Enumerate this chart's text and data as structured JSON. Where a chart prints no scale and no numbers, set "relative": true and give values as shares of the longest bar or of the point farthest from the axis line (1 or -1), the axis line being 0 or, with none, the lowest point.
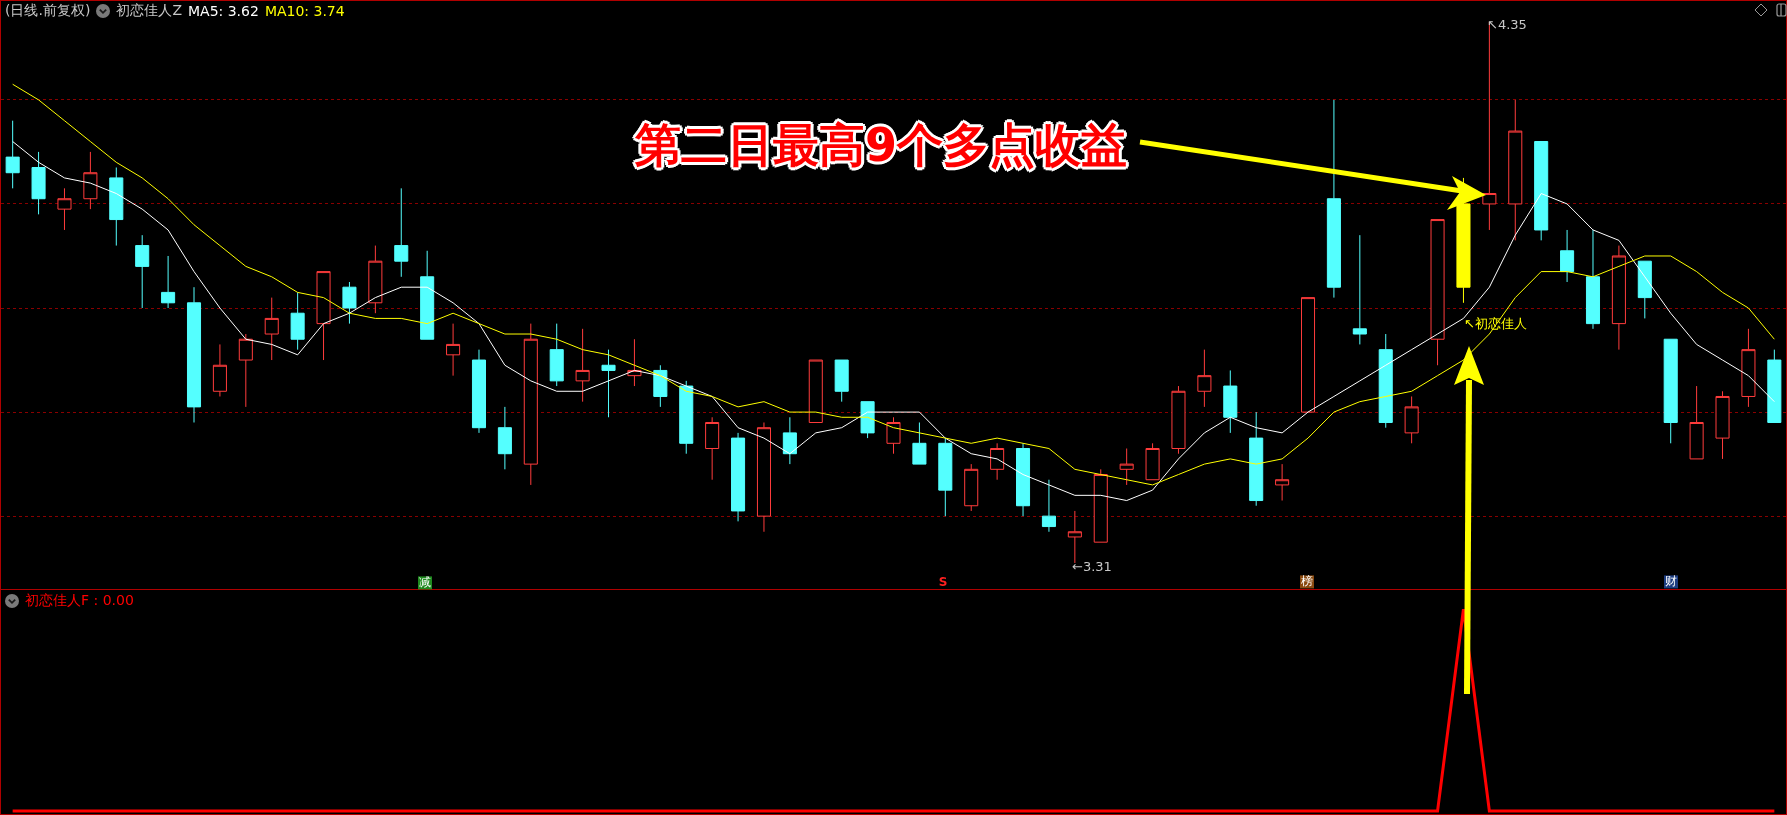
{
  "chart_data": [
    {
      "type": "candlestick",
      "title": "(日线.前复权)",
      "subtitle": "初恋佳人Z",
      "categories": [
        null,
        null,
        null,
        null,
        null,
        null,
        null,
        null,
        null,
        null,
        null,
        null,
        null,
        null,
        null,
        null,
        null,
        null,
        null,
        null,
        null,
        null,
        null,
        null,
        null,
        null,
        null,
        null,
        null,
        null,
        null,
        null,
        null,
        null,
        null,
        null,
        null,
        null,
        null,
        null,
        null,
        null,
        null,
        null,
        null,
        null,
        null,
        null,
        null,
        null,
        null,
        null,
        null,
        null,
        null,
        null,
        null,
        null,
        null,
        null,
        null,
        null,
        null,
        null,
        null,
        null,
        null,
        null,
        null
      ],
      "ohlc": [
        [
          4.09,
          4.16,
          4.03,
          4.06
        ],
        [
          4.07,
          4.1,
          3.98,
          4.01
        ],
        [
          3.99,
          4.03,
          3.95,
          4.01
        ],
        [
          4.01,
          4.1,
          3.99,
          4.06
        ],
        [
          4.05,
          4.07,
          3.92,
          3.97
        ],
        [
          3.92,
          3.94,
          3.8,
          3.88
        ],
        [
          3.83,
          3.9,
          3.8,
          3.81
        ],
        [
          3.81,
          3.84,
          3.58,
          3.61
        ],
        [
          3.64,
          3.73,
          3.63,
          3.69
        ],
        [
          3.7,
          3.75,
          3.61,
          3.74
        ],
        [
          3.75,
          3.82,
          3.7,
          3.78
        ],
        [
          3.79,
          3.83,
          3.72,
          3.74
        ],
        [
          3.77,
          3.87,
          3.7,
          3.87
        ],
        [
          3.84,
          3.85,
          3.77,
          3.8
        ],
        [
          3.81,
          3.92,
          3.79,
          3.89
        ],
        [
          3.92,
          4.03,
          3.86,
          3.89
        ],
        [
          3.86,
          3.91,
          3.74,
          3.74
        ],
        [
          3.71,
          3.77,
          3.67,
          3.73
        ],
        [
          3.7,
          3.72,
          3.56,
          3.57
        ],
        [
          3.57,
          3.61,
          3.49,
          3.52
        ],
        [
          3.5,
          3.77,
          3.46,
          3.74
        ],
        [
          3.72,
          3.77,
          3.65,
          3.66
        ],
        [
          3.66,
          3.76,
          3.62,
          3.68
        ],
        [
          3.69,
          3.72,
          3.59,
          3.68
        ],
        [
          3.67,
          3.74,
          3.65,
          3.68
        ],
        [
          3.68,
          3.69,
          3.61,
          3.63
        ],
        [
          3.65,
          3.66,
          3.52,
          3.54
        ],
        [
          3.53,
          3.59,
          3.47,
          3.58
        ],
        [
          3.55,
          3.56,
          3.39,
          3.41
        ],
        [
          3.4,
          3.58,
          3.37,
          3.57
        ],
        [
          3.56,
          3.59,
          3.5,
          3.52
        ],
        [
          3.58,
          3.7,
          3.58,
          3.7
        ],
        [
          3.7,
          3.7,
          3.62,
          3.64
        ],
        [
          3.62,
          3.62,
          3.55,
          3.56
        ],
        [
          3.54,
          3.59,
          3.52,
          3.58
        ],
        [
          3.54,
          3.58,
          3.5,
          3.5
        ],
        [
          3.54,
          3.55,
          3.4,
          3.45
        ],
        [
          3.42,
          3.5,
          3.41,
          3.49
        ],
        [
          3.49,
          3.54,
          3.47,
          3.53
        ],
        [
          3.53,
          3.54,
          3.4,
          3.42
        ],
        [
          3.4,
          3.47,
          3.37,
          3.38
        ],
        [
          3.36,
          3.41,
          3.31,
          3.37
        ],
        [
          3.35,
          3.49,
          3.35,
          3.48
        ],
        [
          3.49,
          3.53,
          3.46,
          3.5
        ],
        [
          3.47,
          3.54,
          3.47,
          3.53
        ],
        [
          3.53,
          3.65,
          3.52,
          3.64
        ],
        [
          3.64,
          3.72,
          3.61,
          3.67
        ],
        [
          3.65,
          3.68,
          3.56,
          3.59
        ],
        [
          3.55,
          3.6,
          3.42,
          3.43
        ],
        [
          3.46,
          3.5,
          3.43,
          3.47
        ],
        [
          3.6,
          3.82,
          3.6,
          3.82
        ],
        [
          4.01,
          4.2,
          3.82,
          3.84
        ],
        [
          3.76,
          3.94,
          3.73,
          3.75
        ],
        [
          3.72,
          3.75,
          3.57,
          3.58
        ],
        [
          3.56,
          3.63,
          3.54,
          3.61
        ],
        [
          3.74,
          3.97,
          3.69,
          3.97
        ],
        [
          3.84,
          4.05,
          3.81,
          4.0
        ],
        [
          4.0,
          4.35,
          3.95,
          4.02
        ],
        [
          4.0,
          4.2,
          3.93,
          4.14
        ],
        [
          4.12,
          4.12,
          3.93,
          3.95
        ],
        [
          3.91,
          3.95,
          3.85,
          3.87
        ],
        [
          3.86,
          3.95,
          3.76,
          3.77
        ],
        [
          3.77,
          3.92,
          3.72,
          3.9
        ],
        [
          3.89,
          3.89,
          3.78,
          3.82
        ],
        [
          3.74,
          3.74,
          3.54,
          3.58
        ],
        [
          3.51,
          3.65,
          3.51,
          3.58
        ],
        [
          3.55,
          3.64,
          3.51,
          3.63
        ],
        [
          3.63,
          3.76,
          3.61,
          3.72
        ],
        [
          3.7,
          3.72,
          3.58,
          3.58
        ]
      ],
      "colors": [
        "#54ffff",
        "#54ffff",
        "#ff3c3c",
        "#ff3c3c",
        "#54ffff",
        "#54ffff",
        "#54ffff",
        "#54ffff",
        "#ff3c3c",
        "#ff3c3c",
        "#ff3c3c",
        "#54ffff",
        "#ff3c3c",
        "#54ffff",
        "#ff3c3c",
        "#54ffff",
        "#54ffff",
        "#ff3c3c",
        "#54ffff",
        "#54ffff",
        "#ff3c3c",
        "#54ffff",
        "#ff3c3c",
        "#54ffff",
        "#ff3c3c",
        "#54ffff",
        "#54ffff",
        "#ff3c3c",
        "#54ffff",
        "#ff3c3c",
        "#54ffff",
        "#ff3c3c",
        "#54ffff",
        "#54ffff",
        "#ff3c3c",
        "#54ffff",
        "#54ffff",
        "#ff3c3c",
        "#ff3c3c",
        "#54ffff",
        "#54ffff",
        "#ff3c3c",
        "#ff3c3c",
        "#ff3c3c",
        "#ff3c3c",
        "#ff3c3c",
        "#ff3c3c",
        "#54ffff",
        "#54ffff",
        "#ff3c3c",
        "#ff3c3c",
        "#54ffff",
        "#54ffff",
        "#54ffff",
        "#ff3c3c",
        "#ff3c3c",
        "#ffff00",
        "#ff3c3c",
        "#ff3c3c",
        "#54ffff",
        "#54ffff",
        "#54ffff",
        "#ff3c3c",
        "#54ffff",
        "#54ffff",
        "#ff3c3c",
        "#ff3c3c",
        "#ff3c3c",
        "#54ffff"
      ],
      "series": [
        {
          "name": "MA5: 3.62",
          "type": "line",
          "color": "#ffffff",
          "values": [
            4.12,
            4.08,
            4.05,
            4.04,
            4.02,
            3.99,
            3.95,
            3.87,
            3.8,
            3.74,
            3.73,
            3.71,
            3.77,
            3.79,
            3.82,
            3.84,
            3.84,
            3.81,
            3.77,
            3.69,
            3.66,
            3.64,
            3.64,
            3.66,
            3.68,
            3.67,
            3.65,
            3.63,
            3.57,
            3.55,
            3.52,
            3.56,
            3.57,
            3.6,
            3.6,
            3.6,
            3.55,
            3.52,
            3.51,
            3.48,
            3.46,
            3.44,
            3.44,
            3.43,
            3.45,
            3.51,
            3.56,
            3.59,
            3.57,
            3.56,
            3.6,
            3.63,
            3.66,
            3.69,
            3.72,
            3.75,
            3.78,
            3.84,
            3.94,
            4.02,
            4.0,
            3.95,
            3.93,
            3.86,
            3.79,
            3.73,
            3.7,
            3.67,
            3.62
          ]
        },
        {
          "name": "MA10: 3.74",
          "type": "line",
          "color": "#ffff00",
          "values": [
            4.23,
            4.2,
            4.16,
            4.12,
            4.08,
            4.05,
            4.01,
            3.96,
            3.92,
            3.88,
            3.86,
            3.83,
            3.82,
            3.79,
            3.78,
            3.78,
            3.77,
            3.79,
            3.77,
            3.75,
            3.75,
            3.74,
            3.72,
            3.71,
            3.69,
            3.67,
            3.64,
            3.63,
            3.61,
            3.62,
            3.6,
            3.6,
            3.59,
            3.59,
            3.57,
            3.56,
            3.55,
            3.54,
            3.55,
            3.54,
            3.53,
            3.49,
            3.48,
            3.47,
            3.46,
            3.48,
            3.5,
            3.51,
            3.5,
            3.51,
            3.55,
            3.6,
            3.62,
            3.63,
            3.64,
            3.67,
            3.7,
            3.75,
            3.82,
            3.87,
            3.87,
            3.86,
            3.88,
            3.9,
            3.9,
            3.87,
            3.83,
            3.8,
            3.74
          ]
        }
      ],
      "ylim": [
        3.26,
        4.39
      ],
      "yticks": [
        {
          "value": 3.4,
          "label": null
        },
        {
          "value": 3.6,
          "label": null
        },
        {
          "value": 3.8,
          "label": null
        },
        {
          "value": 4.0,
          "label": null
        },
        {
          "value": 4.2,
          "label": null
        }
      ],
      "grid": "y",
      "legend": false,
      "annotations": [
        "第二日最高9个多点收益",
        "↖初恋佳人",
        "↖4.35",
        "←3.31",
        "减",
        "S",
        "榜",
        "财"
      ]
    },
    {
      "type": "line",
      "relative": true,
      "categories": [
        null,
        null,
        null,
        null,
        null,
        null,
        null,
        null,
        null,
        null,
        null,
        null,
        null,
        null,
        null,
        null,
        null,
        null,
        null,
        null,
        null,
        null,
        null,
        null,
        null,
        null,
        null,
        null,
        null,
        null,
        null,
        null,
        null,
        null,
        null,
        null,
        null,
        null,
        null,
        null,
        null,
        null,
        null,
        null,
        null,
        null,
        null,
        null,
        null,
        null,
        null,
        null,
        null,
        null,
        null,
        null,
        null,
        null,
        null,
        null,
        null,
        null,
        null,
        null,
        null,
        null,
        null,
        null,
        null
      ],
      "series": [
        {
          "name": "初恋佳人F : 0.00",
          "color": "#ff0000",
          "values": [
            0,
            0,
            0,
            0,
            0,
            0,
            0,
            0,
            0,
            0,
            0,
            0,
            0,
            0,
            0,
            0,
            0,
            0,
            0,
            0,
            0,
            0,
            0,
            0,
            0,
            0,
            0,
            0,
            0,
            0,
            0,
            0,
            0,
            0,
            0,
            0,
            0,
            0,
            0,
            0,
            0,
            0,
            0,
            0,
            0,
            0,
            0,
            0,
            0,
            0,
            0,
            0,
            0,
            0,
            0,
            0,
            1,
            0,
            0,
            0,
            0,
            0,
            0,
            0,
            0,
            0,
            0,
            0,
            0
          ]
        }
      ],
      "legend": false
    }
  ]
}
